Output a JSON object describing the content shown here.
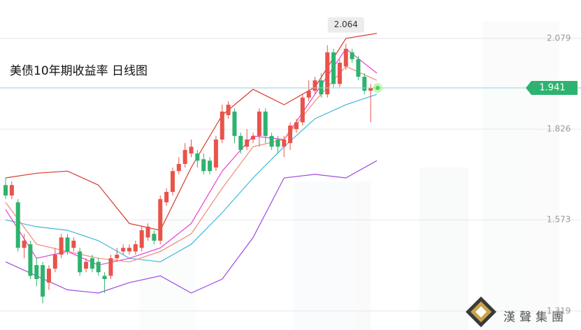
{
  "chart_data": {
    "type": "candlestick",
    "title": "美债10年期收益率  日线图",
    "watermark": "漢聲集團",
    "up_color": "#e8534a",
    "down_color": "#2db36f",
    "ylim": [
      1.266,
      2.186
    ],
    "yticks": [
      2.079,
      1.826,
      1.573,
      1.319
    ],
    "grid": true,
    "open": [
      1.67,
      1.641,
      1.622,
      1.495,
      1.505,
      1.447,
      1.447,
      1.398,
      1.437,
      1.476,
      1.524,
      1.495,
      1.485,
      1.437,
      1.466,
      1.456,
      1.417,
      1.417,
      1.466,
      1.485,
      1.485,
      1.485,
      1.495,
      1.524,
      1.534,
      1.515,
      1.622,
      1.651,
      1.709,
      1.729,
      1.758,
      1.758,
      1.742,
      1.738,
      1.719,
      1.797,
      1.865,
      1.875,
      1.807,
      1.777,
      1.797,
      1.807,
      1.875,
      1.807,
      1.797,
      1.777,
      1.787,
      1.826,
      1.845,
      1.914,
      1.933,
      1.962,
      1.923,
      2.04,
      1.952,
      2.001,
      2.04,
      2.021,
      1.972,
      1.933
    ],
    "high": [
      1.69,
      1.68,
      1.631,
      1.534,
      1.515,
      1.466,
      1.456,
      1.447,
      1.495,
      1.534,
      1.534,
      1.524,
      1.495,
      1.466,
      1.476,
      1.466,
      1.427,
      1.476,
      1.495,
      1.505,
      1.505,
      1.515,
      1.554,
      1.563,
      1.544,
      1.641,
      1.661,
      1.719,
      1.748,
      1.787,
      1.797,
      1.768,
      1.758,
      1.748,
      1.807,
      1.894,
      1.904,
      1.884,
      1.816,
      1.826,
      1.816,
      1.884,
      1.884,
      1.816,
      1.807,
      1.807,
      1.845,
      1.855,
      1.923,
      1.962,
      1.972,
      1.982,
      2.06,
      2.05,
      2.021,
      2.064,
      2.05,
      2.03,
      1.982,
      1.952
    ],
    "low": [
      1.631,
      1.631,
      1.485,
      1.466,
      1.408,
      1.388,
      1.34,
      1.378,
      1.427,
      1.466,
      1.476,
      1.485,
      1.417,
      1.427,
      1.427,
      1.417,
      1.369,
      1.408,
      1.456,
      1.476,
      1.476,
      1.476,
      1.485,
      1.515,
      1.505,
      1.505,
      1.612,
      1.641,
      1.7,
      1.719,
      1.748,
      1.719,
      1.7,
      1.7,
      1.709,
      1.787,
      1.855,
      1.787,
      1.758,
      1.768,
      1.787,
      1.777,
      1.787,
      1.768,
      1.758,
      1.748,
      1.768,
      1.816,
      1.836,
      1.904,
      1.923,
      1.914,
      1.914,
      1.943,
      1.943,
      1.991,
      2.011,
      1.962,
      1.923,
      1.845
    ],
    "close": [
      1.641,
      1.67,
      1.495,
      1.515,
      1.417,
      1.408,
      1.359,
      1.437,
      1.476,
      1.524,
      1.485,
      1.515,
      1.427,
      1.456,
      1.437,
      1.427,
      1.408,
      1.466,
      1.476,
      1.495,
      1.495,
      1.505,
      1.544,
      1.554,
      1.515,
      1.631,
      1.651,
      1.709,
      1.729,
      1.768,
      1.777,
      1.738,
      1.709,
      1.709,
      1.797,
      1.875,
      1.894,
      1.807,
      1.768,
      1.797,
      1.807,
      1.875,
      1.807,
      1.777,
      1.777,
      1.797,
      1.836,
      1.845,
      1.914,
      1.933,
      1.962,
      1.923,
      2.04,
      1.952,
      2.011,
      2.05,
      2.021,
      1.972,
      1.933,
      1.941
    ],
    "series": [
      {
        "color": "#d9372b",
        "x": [
          0,
          5,
          10,
          15,
          20,
          25,
          30,
          35,
          40,
          45,
          50,
          55,
          60
        ],
        "values": [
          1.69,
          1.703,
          1.709,
          1.67,
          1.563,
          1.544,
          1.719,
          1.865,
          1.937,
          1.894,
          1.943,
          2.079,
          2.093
        ]
      },
      {
        "color": "#3fb8d8",
        "x": [
          0,
          5,
          10,
          15,
          20,
          25,
          30,
          35,
          40,
          45,
          50,
          55,
          60
        ],
        "values": [
          1.573,
          1.554,
          1.544,
          1.515,
          1.466,
          1.456,
          1.505,
          1.593,
          1.69,
          1.777,
          1.855,
          1.894,
          1.923
        ]
      },
      {
        "color": "#9b4be0",
        "x": [
          0,
          5,
          10,
          15,
          20,
          25,
          30,
          35,
          40,
          45,
          50,
          55,
          60
        ],
        "values": [
          1.456,
          1.417,
          1.378,
          1.369,
          1.398,
          1.417,
          1.369,
          1.408,
          1.524,
          1.69,
          1.7,
          1.69,
          1.738
        ]
      },
      {
        "color": "#ec3fd0",
        "x": [
          0,
          5,
          10,
          15,
          20,
          25,
          30,
          35,
          40,
          45,
          50,
          55,
          60
        ],
        "values": [
          1.602,
          1.466,
          1.485,
          1.447,
          1.466,
          1.495,
          1.563,
          1.709,
          1.807,
          1.797,
          1.923,
          2.05,
          1.982
        ]
      },
      {
        "color": "#f08a7a",
        "x": [
          0,
          5,
          10,
          15,
          20,
          25,
          30,
          35,
          40,
          45,
          50,
          55,
          60
        ],
        "values": [
          1.622,
          1.505,
          1.485,
          1.466,
          1.456,
          1.485,
          1.534,
          1.661,
          1.777,
          1.797,
          1.904,
          2.001,
          1.962
        ]
      }
    ]
  }
}
